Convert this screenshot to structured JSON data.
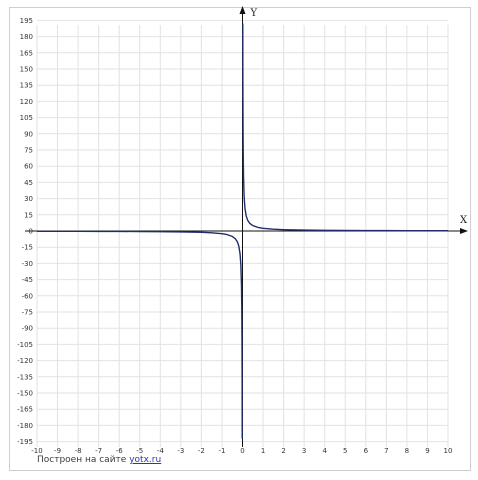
{
  "chart_data": {
    "type": "line",
    "xlabel": "X",
    "ylabel": "Y",
    "xlim": [
      -10,
      10
    ],
    "ylim": [
      -200,
      200
    ],
    "grid": true,
    "x_ticks": [
      -10,
      -9,
      -8,
      -7,
      -6,
      -5,
      -4,
      -3,
      -2,
      -1,
      0,
      1,
      2,
      3,
      4,
      5,
      6,
      7,
      8,
      9,
      10
    ],
    "x_tick_labels": [
      "-10",
      "-9",
      "-8",
      "-7",
      "-6",
      "-5",
      "-4",
      "-3",
      "-2",
      "-1",
      "0",
      "1",
      "2",
      "3",
      "4",
      "5",
      "6",
      "7",
      "8",
      "9",
      "10"
    ],
    "y_ticks": [
      195,
      180,
      165,
      150,
      135,
      120,
      105,
      90,
      75,
      60,
      45,
      30,
      15,
      0,
      -15,
      -30,
      -45,
      -60,
      -75,
      -90,
      -105,
      -120,
      -135,
      -150,
      -165,
      -180,
      -195
    ],
    "y_tick_labels": [
      "195",
      "180",
      "165",
      "150",
      "135",
      "120",
      "105",
      "90",
      "75",
      "60",
      "45",
      "30",
      "15",
      "0",
      "-15",
      "-30",
      "-45",
      "-60",
      "-75",
      "-90",
      "-105",
      "-120",
      "-135",
      "-150",
      "-165",
      "-180",
      "-195"
    ],
    "series": [
      {
        "color": "#1f2d6e",
        "x": [
          -10,
          -9,
          -8,
          -7,
          -6,
          -5,
          -4,
          -3,
          -2,
          -1.5,
          -1,
          -0.75,
          -0.5,
          -0.35,
          -0.25,
          -0.18,
          -0.12,
          -0.08,
          -0.05,
          -0.035,
          -0.025,
          -0.018,
          -0.013
        ],
        "y": [
          -0.25,
          -0.28,
          -0.31,
          -0.36,
          -0.42,
          -0.5,
          -0.63,
          -0.83,
          -1.25,
          -1.67,
          -2.5,
          -3.33,
          -5,
          -7.14,
          -10,
          -13.9,
          -20.8,
          -31.3,
          -50,
          -71.4,
          -100,
          -138.9,
          -192.3
        ]
      },
      {
        "color": "#1f2d6e",
        "x": [
          0.013,
          0.018,
          0.025,
          0.035,
          0.05,
          0.08,
          0.12,
          0.18,
          0.25,
          0.35,
          0.5,
          0.75,
          1,
          1.5,
          2,
          3,
          4,
          5,
          6,
          7,
          8,
          9,
          10
        ],
        "y": [
          192.3,
          138.9,
          100,
          71.4,
          50,
          31.3,
          20.8,
          13.9,
          10,
          7.14,
          5,
          3.33,
          2.5,
          1.67,
          1.25,
          0.83,
          0.63,
          0.5,
          0.42,
          0.36,
          0.31,
          0.28,
          0.25
        ]
      }
    ]
  },
  "credit": {
    "prefix": "Построен на сайте",
    "link": "yotx.ru"
  }
}
